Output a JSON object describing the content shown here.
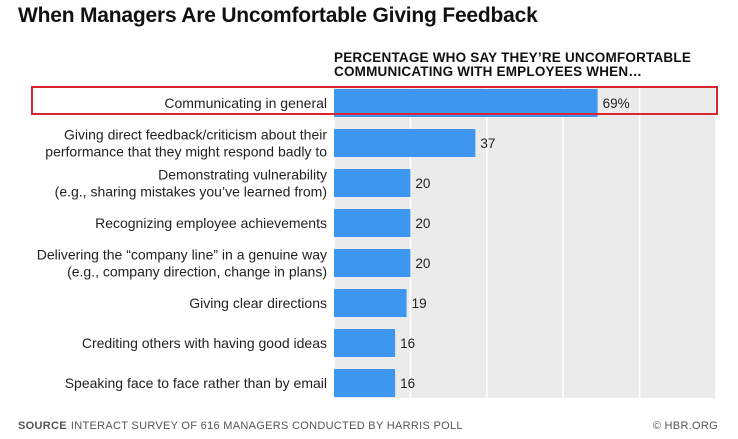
{
  "title": "When Managers Are Uncomfortable Giving Feedback",
  "subtitle": "PERCENTAGE WHO SAY THEY’RE UNCOMFORTABLE COMMUNICATING WITH EMPLOYEES WHEN…",
  "footer": {
    "source_label": "SOURCE",
    "source_text": "INTERACT SURVEY OF 616 MANAGERS CONDUCTED BY HARRIS POLL",
    "credit": "© HBR.ORG"
  },
  "colors": {
    "bar": "#3d96ef",
    "background_band": "#ebebeb",
    "grid": "#ffffff",
    "highlight": "#d9262e"
  },
  "chart_data": {
    "type": "bar",
    "orientation": "horizontal",
    "title": "When Managers Are Uncomfortable Giving Feedback",
    "subtitle": "PERCENTAGE WHO SAY THEY’RE UNCOMFORTABLE COMMUNICATING WITH EMPLOYEES WHEN…",
    "categories": [
      [
        "Communicating in general"
      ],
      [
        "Giving direct feedback/criticism about their",
        "performance that they might respond badly to"
      ],
      [
        "Demonstrating vulnerability",
        "(e.g., sharing mistakes you’ve learned from)"
      ],
      [
        "Recognizing employee achievements"
      ],
      [
        "Delivering the “company line” in a genuine way",
        "(e.g., company direction, change in plans)"
      ],
      [
        "Giving clear directions"
      ],
      [
        "Crediting others with having good ideas"
      ],
      [
        "Speaking face to face rather than by email"
      ]
    ],
    "values": [
      69,
      37,
      20,
      20,
      20,
      19,
      16,
      16
    ],
    "value_labels": [
      "69%",
      "37",
      "20",
      "20",
      "20",
      "19",
      "16",
      "16"
    ],
    "xlim": [
      0,
      100
    ],
    "grid": true,
    "highlighted_category_index": 0
  }
}
